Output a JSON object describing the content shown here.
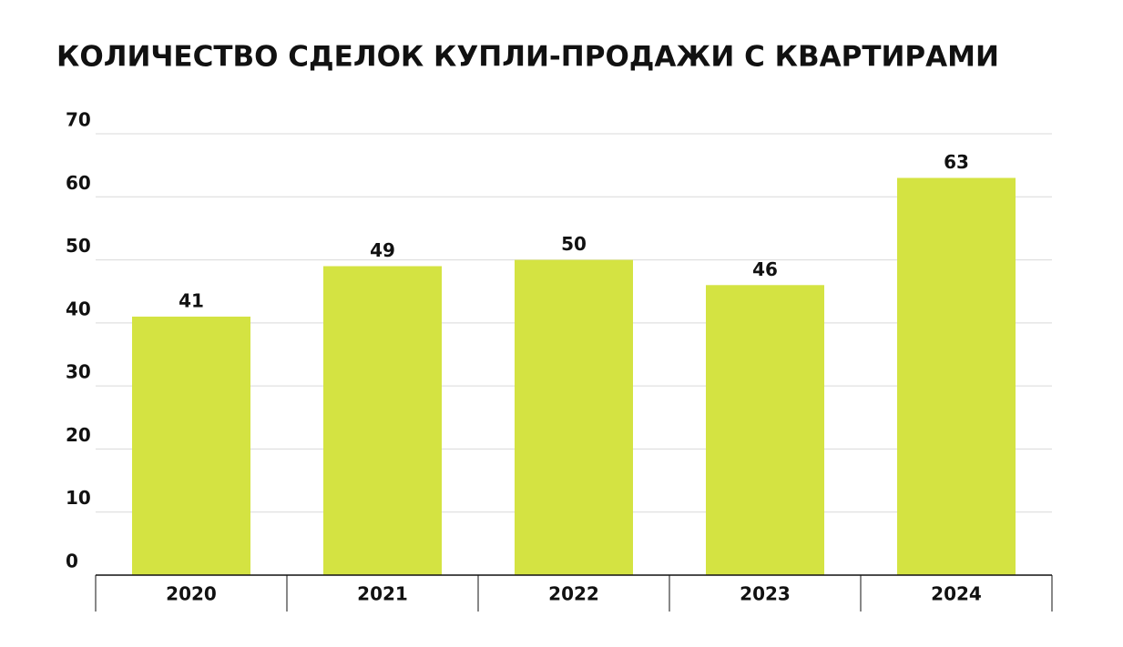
{
  "chart_data": {
    "type": "bar",
    "title": "КОЛИЧЕСТВО СДЕЛОК КУПЛИ-ПРОДАЖИ С КВАРТИРАМИ",
    "categories": [
      "2020",
      "2021",
      "2022",
      "2023",
      "2024"
    ],
    "values": [
      41,
      49,
      50,
      46,
      63
    ],
    "color": "#d4e342",
    "ylim": [
      0,
      70
    ],
    "yticks": [
      0,
      10,
      20,
      30,
      40,
      50,
      60,
      70
    ],
    "grid": true
  }
}
